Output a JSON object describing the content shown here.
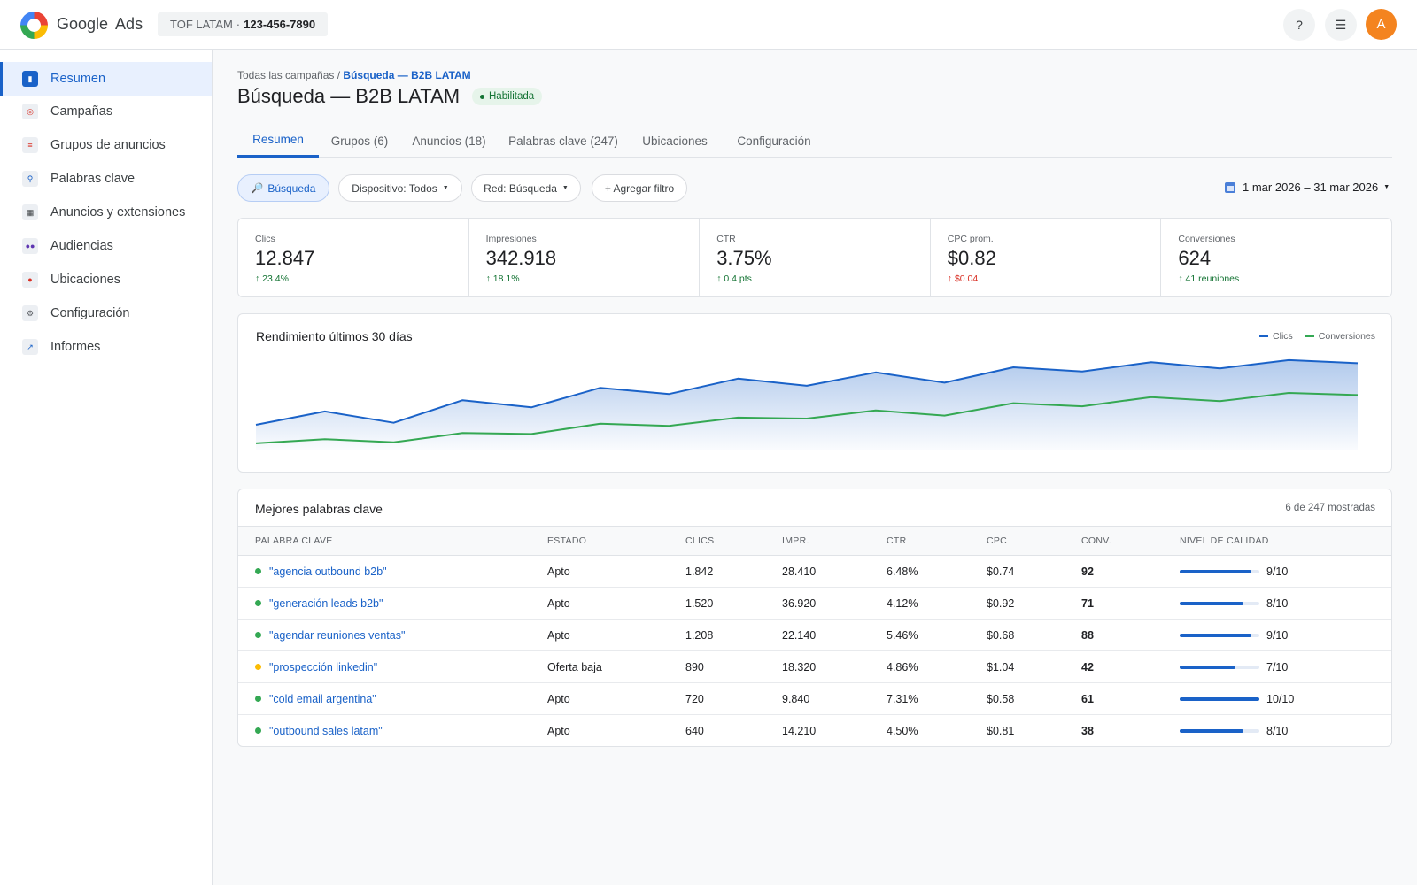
{
  "app": {
    "brand_google": "Google",
    "brand_ads": "Ads"
  },
  "account": {
    "name": "TOF LATAM",
    "separator": "·",
    "id": "123-456-7890"
  },
  "topbar": {
    "help_label": "?",
    "menu_label": "☰",
    "avatar_initial": "A",
    "avatar_color": "#f4841f"
  },
  "sidebar": {
    "items": [
      {
        "label": "Resumen",
        "icon": "overview-icon",
        "active": true
      },
      {
        "label": "Campañas",
        "icon": "campaigns-icon",
        "active": false
      },
      {
        "label": "Grupos de anuncios",
        "icon": "ad-groups-icon",
        "active": false
      },
      {
        "label": "Palabras clave",
        "icon": "keywords-icon",
        "active": false
      },
      {
        "label": "Anuncios y extensiones",
        "icon": "ads-icon",
        "active": false
      },
      {
        "label": "Audiencias",
        "icon": "audiences-icon",
        "active": false
      },
      {
        "label": "Ubicaciones",
        "icon": "locations-icon",
        "active": false
      },
      {
        "label": "Configuración",
        "icon": "settings-icon",
        "active": false
      },
      {
        "label": "Informes",
        "icon": "reports-icon",
        "active": false
      }
    ]
  },
  "breadcrumb": {
    "parent": "Todas las campañas",
    "separator": " / ",
    "current": "Búsqueda — B2B LATAM"
  },
  "page": {
    "title": "Búsqueda — B2B LATAM",
    "status": "Habilitada"
  },
  "tabs": [
    {
      "label": "Resumen",
      "active": true
    },
    {
      "label": "Grupos (6)",
      "active": false
    },
    {
      "label": "Anuncios (18)",
      "active": false
    },
    {
      "label": "Palabras clave (247)",
      "active": false
    },
    {
      "label": "Ubicaciones",
      "active": false
    },
    {
      "label": "Configuración",
      "active": false
    }
  ],
  "filters": {
    "campaign_type": "Búsqueda",
    "device": "Dispositivo: Todos",
    "network": "Red: Búsqueda",
    "add_filter": "+ Agregar filtro",
    "date_range": "1 mar 2026 – 31 mar 2026"
  },
  "metrics": [
    {
      "label": "Clics",
      "value": "12.847",
      "delta": "↑ 23.4%",
      "trend": "good"
    },
    {
      "label": "Impresiones",
      "value": "342.918",
      "delta": "↑ 18.1%",
      "trend": "good"
    },
    {
      "label": "CTR",
      "value": "3.75%",
      "delta": "↑ 0.4 pts",
      "trend": "good"
    },
    {
      "label": "CPC prom.",
      "value": "$0.82",
      "delta": "↑ $0.04",
      "trend": "bad"
    },
    {
      "label": "Conversiones",
      "value": "624",
      "delta": "↑ 41 reuniones",
      "trend": "good"
    }
  ],
  "chart_data": {
    "type": "area",
    "title": "Rendimiento últimos 30 días",
    "legend_position": "top-right",
    "grid": false,
    "ylim": [
      0,
      100
    ],
    "series": [
      {
        "name": "Clics",
        "color": "#1a62c8",
        "fill": true,
        "values": [
          25,
          38,
          27,
          49,
          42,
          61,
          55,
          70,
          63,
          76,
          66,
          81,
          77,
          86,
          80,
          88,
          85
        ]
      },
      {
        "name": "Conversiones",
        "color": "#34a853",
        "fill": false,
        "values": [
          7,
          11,
          8,
          17,
          16,
          26,
          24,
          32,
          31,
          39,
          34,
          46,
          43,
          52,
          48,
          56,
          54
        ]
      }
    ]
  },
  "keywords": {
    "title": "Mejores palabras clave",
    "count_label": "6 de 247 mostradas",
    "columns": [
      "PALABRA CLAVE",
      "ESTADO",
      "CLICS",
      "IMPR.",
      "CTR",
      "CPC",
      "CONV.",
      "NIVEL DE CALIDAD"
    ],
    "rows": [
      {
        "keyword": "\"agencia outbound b2b\"",
        "status": "Apto",
        "status_color": "#34a853",
        "clicks": "1.842",
        "impr": "28.410",
        "ctr": "6.48%",
        "cpc": "$0.74",
        "conv": "92",
        "quality": "9/10",
        "quality_fraction": 0.9
      },
      {
        "keyword": "\"generación leads b2b\"",
        "status": "Apto",
        "status_color": "#34a853",
        "clicks": "1.520",
        "impr": "36.920",
        "ctr": "4.12%",
        "cpc": "$0.92",
        "conv": "71",
        "quality": "8/10",
        "quality_fraction": 0.8
      },
      {
        "keyword": "\"agendar reuniones ventas\"",
        "status": "Apto",
        "status_color": "#34a853",
        "clicks": "1.208",
        "impr": "22.140",
        "ctr": "5.46%",
        "cpc": "$0.68",
        "conv": "88",
        "quality": "9/10",
        "quality_fraction": 0.9
      },
      {
        "keyword": "\"prospección linkedin\"",
        "status": "Oferta baja",
        "status_color": "#fbbc04",
        "clicks": "890",
        "impr": "18.320",
        "ctr": "4.86%",
        "cpc": "$1.04",
        "conv": "42",
        "quality": "7/10",
        "quality_fraction": 0.7
      },
      {
        "keyword": "\"cold email argentina\"",
        "status": "Apto",
        "status_color": "#34a853",
        "clicks": "720",
        "impr": "9.840",
        "ctr": "7.31%",
        "cpc": "$0.58",
        "conv": "61",
        "quality": "10/10",
        "quality_fraction": 1.0
      },
      {
        "keyword": "\"outbound sales latam\"",
        "status": "Apto",
        "status_color": "#34a853",
        "clicks": "640",
        "impr": "14.210",
        "ctr": "4.50%",
        "cpc": "$0.81",
        "conv": "38",
        "quality": "8/10",
        "quality_fraction": 0.8
      }
    ]
  },
  "colors": {
    "accent": "#1a62c8",
    "good": "#137333",
    "bad": "#d93025",
    "active_bg": "#e8f0fe"
  }
}
